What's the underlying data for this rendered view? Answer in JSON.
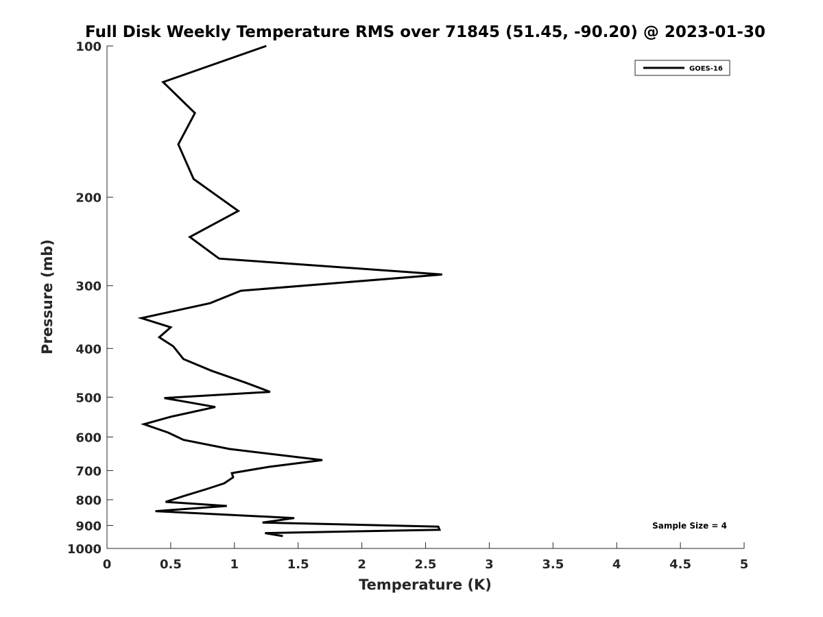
{
  "chart_data": {
    "type": "line",
    "title": "Full Disk Weekly Temperature RMS over 71845 (51.45, -90.20) @ 2023-01-30",
    "xlabel": "Temperature (K)",
    "ylabel": "Pressure (mb)",
    "xlim": [
      0,
      5
    ],
    "ylim": [
      100,
      1000
    ],
    "y_scale": "log",
    "y_reversed": true,
    "x_ticks": [
      0,
      0.5,
      1,
      1.5,
      2,
      2.5,
      3,
      3.5,
      4,
      4.5,
      5
    ],
    "x_tick_labels": [
      "0",
      "0.5",
      "1",
      "1.5",
      "2",
      "2.5",
      "3",
      "3.5",
      "4",
      "4.5",
      "5"
    ],
    "y_ticks": [
      100,
      200,
      300,
      400,
      500,
      600,
      700,
      800,
      900,
      1000
    ],
    "y_tick_labels": [
      "100",
      "200",
      "300",
      "400",
      "500",
      "600",
      "700",
      "800",
      "900",
      "1000"
    ],
    "grid": false,
    "legend_position": "top-right",
    "series": [
      {
        "name": "GOES-16",
        "color": "#000000",
        "x": [
          1.25,
          0.44,
          0.69,
          0.56,
          0.68,
          1.03,
          0.65,
          0.88,
          2.63,
          1.05,
          0.81,
          0.27,
          0.5,
          0.41,
          0.52,
          0.6,
          0.82,
          1.09,
          1.28,
          0.45,
          0.85,
          0.5,
          0.29,
          0.48,
          0.6,
          0.96,
          1.69,
          1.27,
          0.98,
          0.99,
          0.92,
          0.78,
          0.6,
          0.46,
          0.94,
          0.38,
          1.47,
          1.22,
          2.6,
          2.61,
          1.24,
          1.38
        ],
        "y": [
          100,
          118,
          136,
          157,
          184,
          213,
          240,
          265,
          285,
          307,
          325,
          348,
          363,
          380,
          396,
          420,
          443,
          468,
          488,
          502,
          523,
          547,
          566,
          588,
          608,
          634,
          667,
          688,
          708,
          722,
          742,
          762,
          787,
          808,
          823,
          843,
          870,
          888,
          905,
          918,
          932,
          945
        ]
      }
    ],
    "annotations": [
      "Sample Size = 4"
    ]
  }
}
